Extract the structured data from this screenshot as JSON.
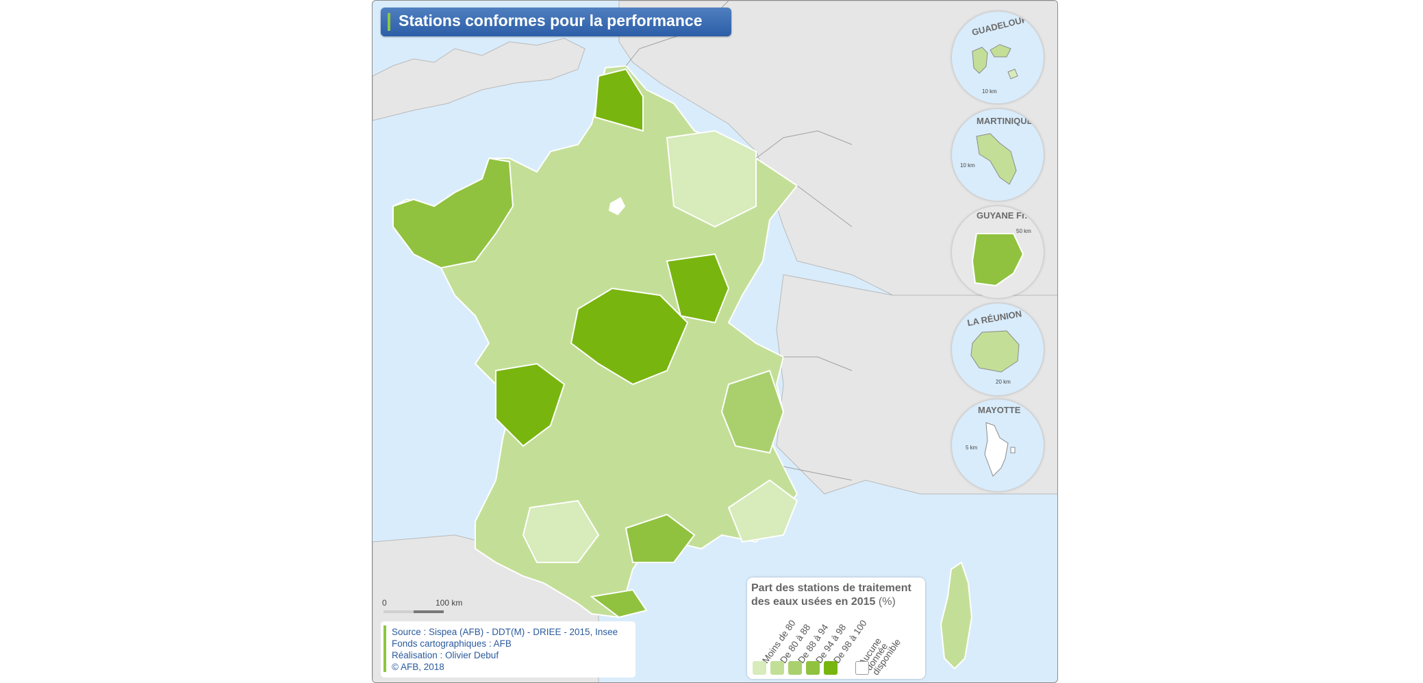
{
  "title": "Stations conformes pour la performance",
  "scale": {
    "zero": "0",
    "end": "100 km"
  },
  "source": {
    "line1": "Source : Sispea (AFB) - DDT(M) - DRIEE - 2015, Insee",
    "line2": "Fonds cartographiques : AFB",
    "line3": "Réalisation : Olivier Debuf",
    "line4": "© AFB, 2018"
  },
  "legend": {
    "title": "Part des stations de traitement des eaux usées en 2015",
    "unit": "(%)",
    "classes": [
      {
        "label": "Moins de 80",
        "color": "#d7ebbb"
      },
      {
        "label": "De 80 à 88",
        "color": "#c3df97"
      },
      {
        "label": "De 88 à 94",
        "color": "#a9d06d"
      },
      {
        "label": "De 94 à 98",
        "color": "#90c23f"
      },
      {
        "label": "De 98 à 100",
        "color": "#78b50f"
      },
      {
        "label": "Aucune donnée disponible",
        "color": "#ffffff"
      }
    ]
  },
  "insets": [
    {
      "name": "GUADELOUPE",
      "scale": "10 km"
    },
    {
      "name": "MARTINIQUE",
      "scale": "10 km"
    },
    {
      "name": "GUYANE Fr.",
      "scale": "50 km"
    },
    {
      "name": "LA RÉUNION",
      "scale": "20 km"
    },
    {
      "name": "MAYOTTE",
      "scale": "5 km"
    }
  ],
  "colors": {
    "sea": "#d9ecfb",
    "land_foreign": "#e6e6e6",
    "borders": "#ffffff",
    "title_bg": "#3566ad",
    "accent": "#8cc63f"
  }
}
